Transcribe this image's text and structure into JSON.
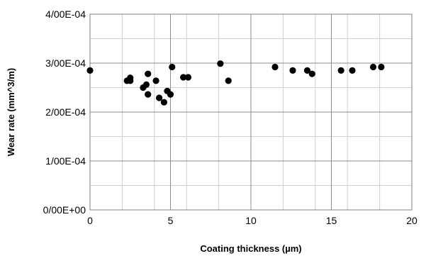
{
  "chart_data": {
    "type": "scatter",
    "title": "",
    "xlabel": "Coating thickness (µm)",
    "ylabel": "Wear rate (mm^3/m)",
    "xlim": [
      0,
      20
    ],
    "ylim": [
      0,
      0.0004
    ],
    "grid": true,
    "minor_grid": true,
    "legend": "none",
    "marker_color": "#000000",
    "x_ticks": [
      {
        "value": 0,
        "label": "0"
      },
      {
        "value": 5,
        "label": "5"
      },
      {
        "value": 10,
        "label": "10"
      },
      {
        "value": 15,
        "label": "15"
      },
      {
        "value": 20,
        "label": "20"
      }
    ],
    "y_ticks": [
      {
        "value": 0,
        "label": "0/00E+00"
      },
      {
        "value": 0.0001,
        "label": "1/00E-04"
      },
      {
        "value": 0.0002,
        "label": "2/00E-04"
      },
      {
        "value": 0.0003,
        "label": "3/00E-04"
      },
      {
        "value": 0.0004,
        "label": "4/00E-04"
      }
    ],
    "points": [
      {
        "x": 0.0,
        "y": 0.000285
      },
      {
        "x": 2.3,
        "y": 0.000264
      },
      {
        "x": 2.5,
        "y": 0.00027
      },
      {
        "x": 2.5,
        "y": 0.000264
      },
      {
        "x": 3.3,
        "y": 0.00025
      },
      {
        "x": 3.5,
        "y": 0.000256
      },
      {
        "x": 3.6,
        "y": 0.000278
      },
      {
        "x": 3.6,
        "y": 0.000236
      },
      {
        "x": 4.1,
        "y": 0.000264
      },
      {
        "x": 4.3,
        "y": 0.000229
      },
      {
        "x": 4.6,
        "y": 0.00022
      },
      {
        "x": 4.8,
        "y": 0.000243
      },
      {
        "x": 5.0,
        "y": 0.000236
      },
      {
        "x": 5.1,
        "y": 0.000292
      },
      {
        "x": 5.8,
        "y": 0.000271
      },
      {
        "x": 6.1,
        "y": 0.000271
      },
      {
        "x": 8.1,
        "y": 0.000299
      },
      {
        "x": 8.6,
        "y": 0.000264
      },
      {
        "x": 11.5,
        "y": 0.000292
      },
      {
        "x": 12.6,
        "y": 0.000285
      },
      {
        "x": 13.5,
        "y": 0.000285
      },
      {
        "x": 13.8,
        "y": 0.000278
      },
      {
        "x": 15.6,
        "y": 0.000285
      },
      {
        "x": 16.3,
        "y": 0.000285
      },
      {
        "x": 17.6,
        "y": 0.000292
      },
      {
        "x": 18.1,
        "y": 0.000292
      }
    ]
  }
}
